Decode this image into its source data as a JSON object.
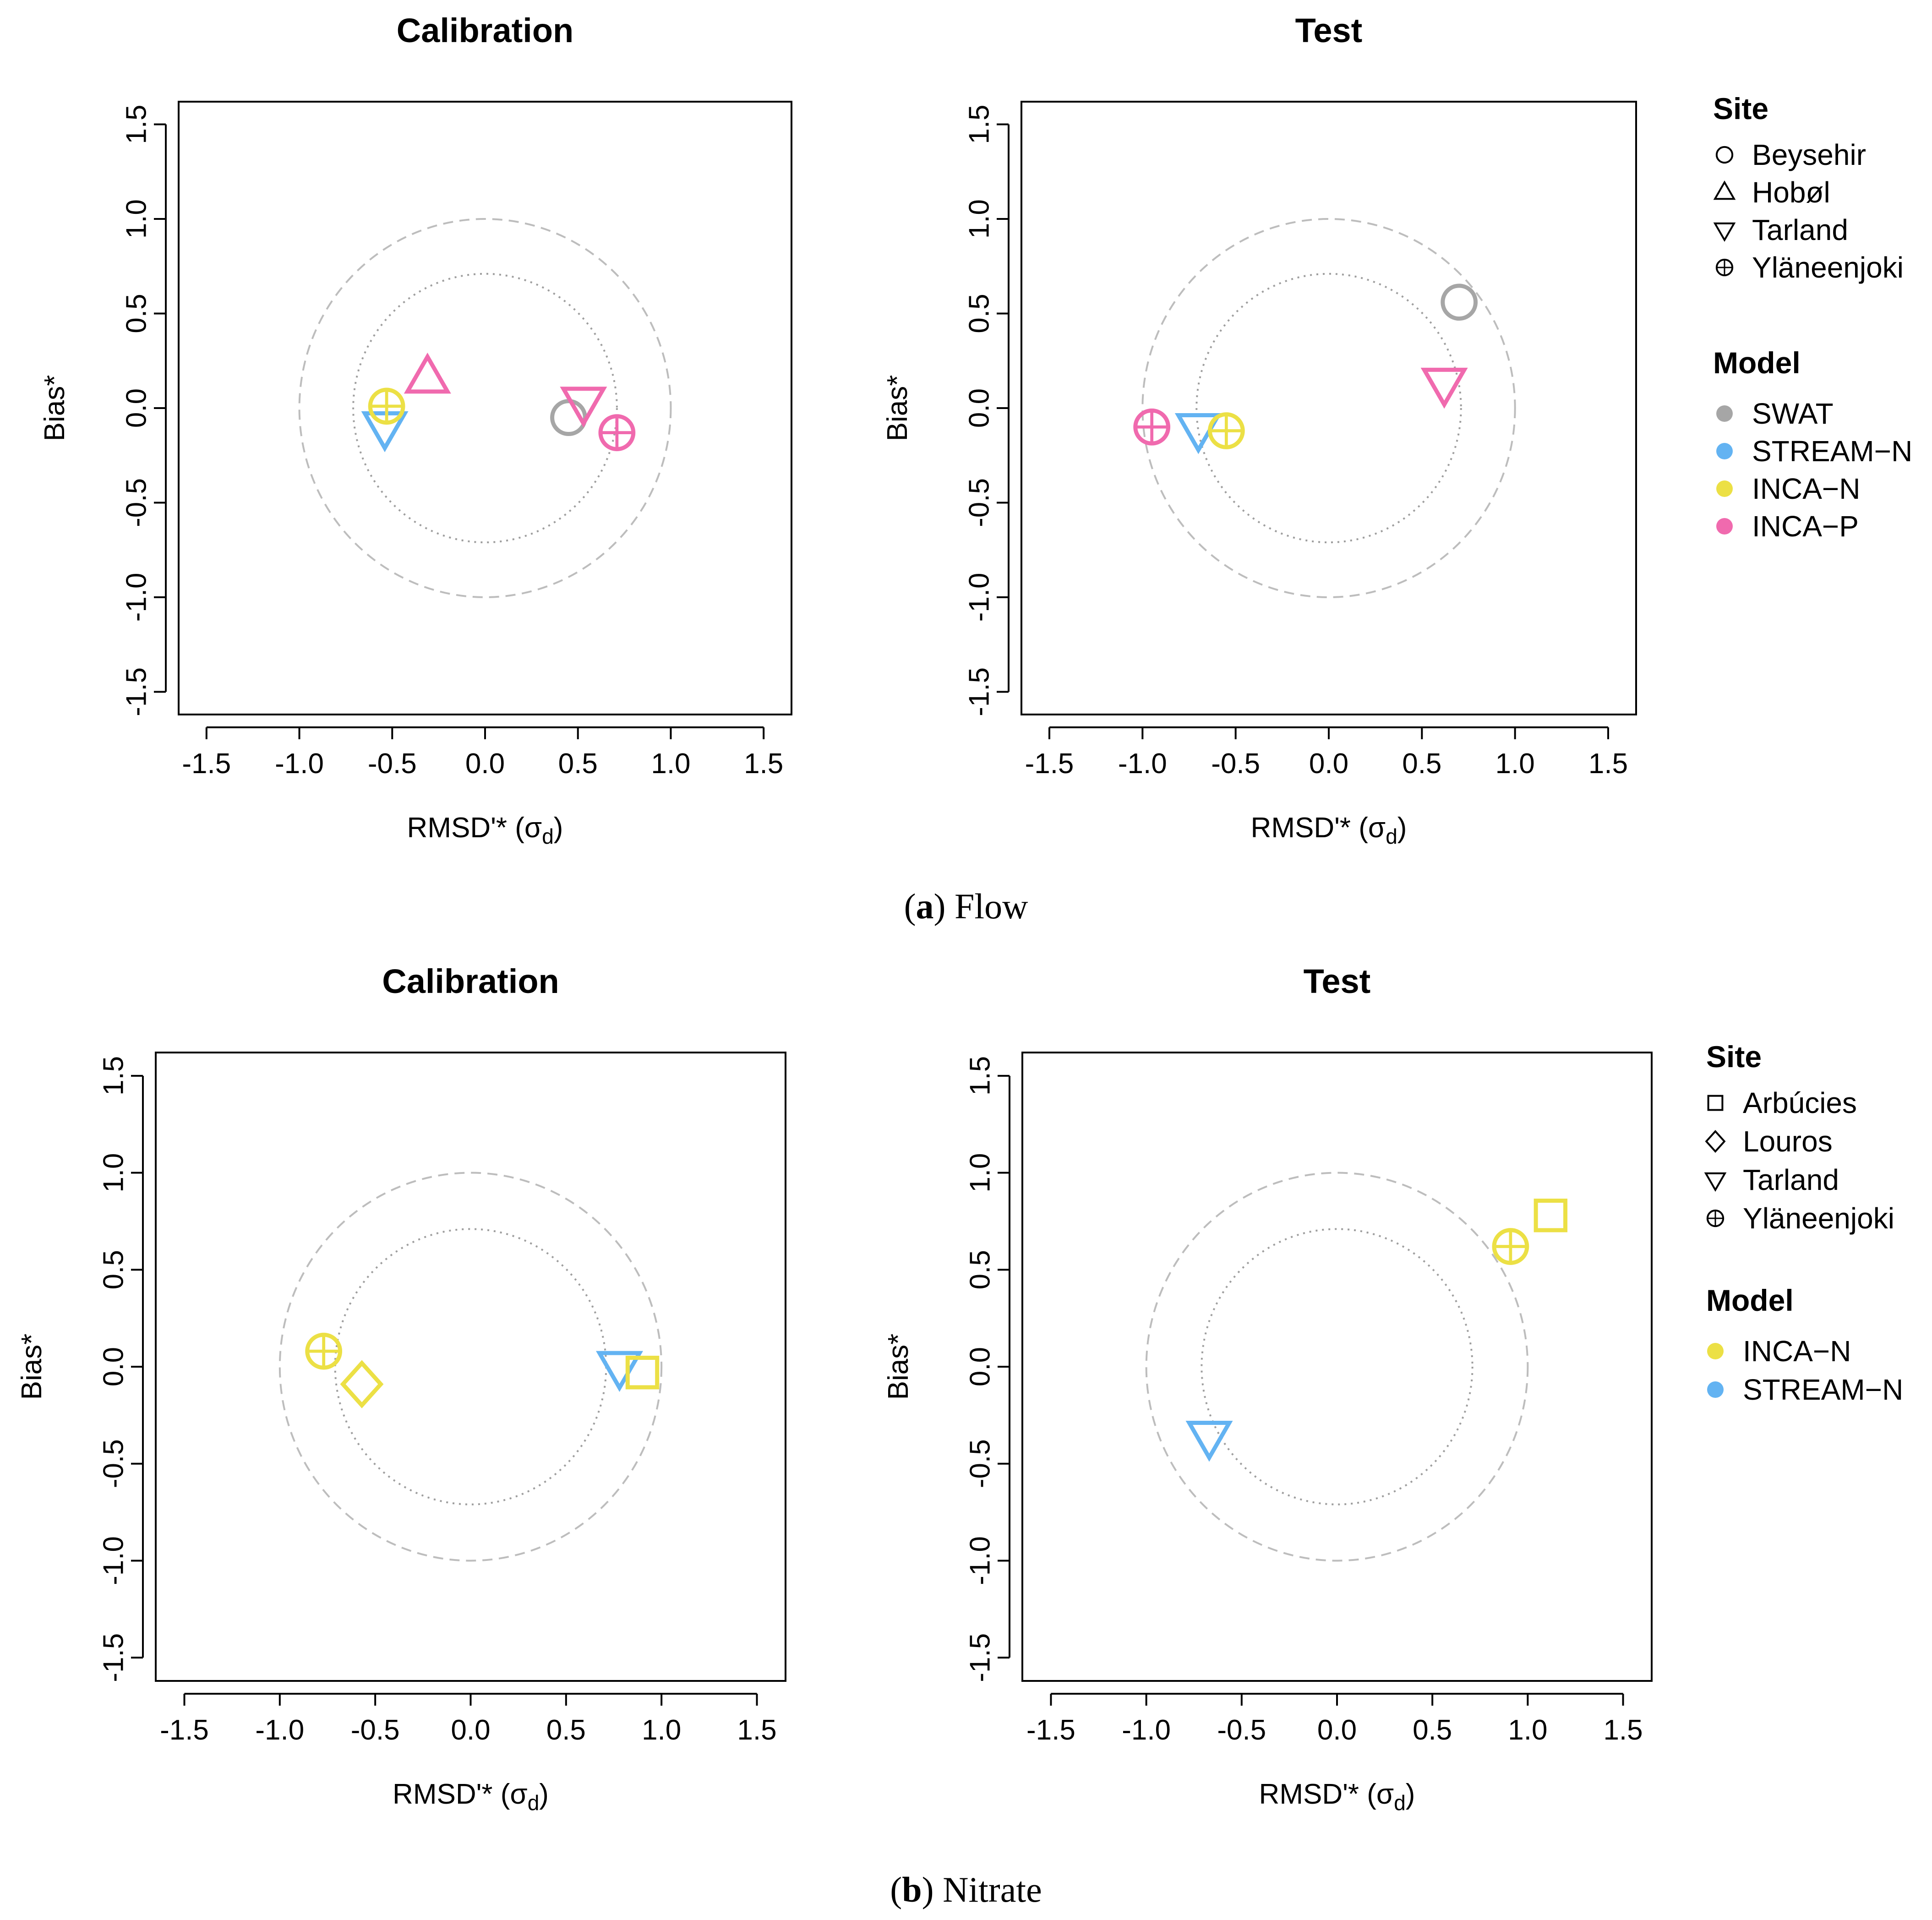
{
  "colors": {
    "SWAT": "#a6a6a6",
    "STREAM-N": "#63b3f2",
    "INCA-N": "#ece045",
    "INCA-P": "#f06aae",
    "ref_circle": "#bdbdbd",
    "dotted_circle": "#9e9e9e"
  },
  "chart_data": [
    {
      "id": "flow-calibration",
      "type": "scatter",
      "title": "Calibration",
      "xlabel": "RMSD'* (σd)",
      "ylabel": "Bias*",
      "xlim": [
        -1.65,
        1.65
      ],
      "ylim": [
        -1.62,
        1.62
      ],
      "xticks": [
        "-1.5",
        "-1.0",
        "-0.5",
        "0.0",
        "0.5",
        "1.0",
        "1.5"
      ],
      "yticks": [
        "-1.5",
        "-1.0",
        "-0.5",
        "0.0",
        "0.5",
        "1.0",
        "1.5"
      ],
      "reference_circles": [
        1.0,
        0.71
      ],
      "points": [
        {
          "site": "Beysehir",
          "model": "SWAT",
          "shape": "circle",
          "x": 0.45,
          "y": -0.05
        },
        {
          "site": "Hobøl",
          "model": "INCA-P",
          "shape": "triangle-up",
          "x": -0.31,
          "y": 0.16
        },
        {
          "site": "Tarland",
          "model": "STREAM-N",
          "shape": "triangle-down",
          "x": -0.54,
          "y": -0.1
        },
        {
          "site": "Tarland",
          "model": "INCA-P",
          "shape": "triangle-down",
          "x": 0.53,
          "y": 0.03
        },
        {
          "site": "Yläneenjoki",
          "model": "INCA-N",
          "shape": "circle-plus",
          "x": -0.53,
          "y": 0.01
        },
        {
          "site": "Yläneenjoki",
          "model": "INCA-P",
          "shape": "circle-plus",
          "x": 0.71,
          "y": -0.13
        }
      ]
    },
    {
      "id": "flow-test",
      "type": "scatter",
      "title": "Test",
      "xlabel": "RMSD'* (σd)",
      "ylabel": "Bias*",
      "xlim": [
        -1.65,
        1.65
      ],
      "ylim": [
        -1.62,
        1.62
      ],
      "xticks": [
        "-1.5",
        "-1.0",
        "-0.5",
        "0.0",
        "0.5",
        "1.0",
        "1.5"
      ],
      "yticks": [
        "-1.5",
        "-1.0",
        "-0.5",
        "0.0",
        "0.5",
        "1.0",
        "1.5"
      ],
      "reference_circles": [
        1.0,
        0.71
      ],
      "points": [
        {
          "site": "Beysehir",
          "model": "SWAT",
          "shape": "circle",
          "x": 0.7,
          "y": 0.56
        },
        {
          "site": "Tarland",
          "model": "INCA-P",
          "shape": "triangle-down",
          "x": 0.62,
          "y": 0.13
        },
        {
          "site": "Tarland",
          "model": "STREAM-N",
          "shape": "triangle-down",
          "x": -0.7,
          "y": -0.11
        },
        {
          "site": "Yläneenjoki",
          "model": "INCA-N",
          "shape": "circle-plus",
          "x": -0.55,
          "y": -0.12
        },
        {
          "site": "Yläneenjoki",
          "model": "INCA-P",
          "shape": "circle-plus",
          "x": -0.95,
          "y": -0.1
        }
      ]
    },
    {
      "id": "nitrate-calibration",
      "type": "scatter",
      "title": "Calibration",
      "xlabel": "RMSD'* (σd)",
      "ylabel": "Bias*",
      "xlim": [
        -1.65,
        1.65
      ],
      "ylim": [
        -1.62,
        1.62
      ],
      "xticks": [
        "-1.5",
        "-1.0",
        "-0.5",
        "0.0",
        "0.5",
        "1.0",
        "1.5"
      ],
      "yticks": [
        "-1.5",
        "-1.0",
        "-0.5",
        "0.0",
        "0.5",
        "1.0",
        "1.5"
      ],
      "reference_circles": [
        1.0,
        0.71
      ],
      "points": [
        {
          "site": "Yläneenjoki",
          "model": "INCA-N",
          "shape": "circle-plus",
          "x": -0.77,
          "y": 0.08
        },
        {
          "site": "Louros",
          "model": "INCA-N",
          "shape": "diamond",
          "x": -0.57,
          "y": -0.09
        },
        {
          "site": "Tarland",
          "model": "STREAM-N",
          "shape": "triangle-down",
          "x": 0.78,
          "y": 0.0
        },
        {
          "site": "Arbúcies",
          "model": "INCA-N",
          "shape": "square",
          "x": 0.9,
          "y": -0.03
        }
      ]
    },
    {
      "id": "nitrate-test",
      "type": "scatter",
      "title": "Test",
      "xlabel": "RMSD'* (σd)",
      "ylabel": "Bias*",
      "xlim": [
        -1.65,
        1.65
      ],
      "ylim": [
        -1.62,
        1.62
      ],
      "xticks": [
        "-1.5",
        "-1.0",
        "-0.5",
        "0.0",
        "0.5",
        "1.0",
        "1.5"
      ],
      "yticks": [
        "-1.5",
        "-1.0",
        "-0.5",
        "0.0",
        "0.5",
        "1.0",
        "1.5"
      ],
      "reference_circles": [
        1.0,
        0.71
      ],
      "points": [
        {
          "site": "Arbúcies",
          "model": "INCA-N",
          "shape": "square",
          "x": 1.12,
          "y": 0.78
        },
        {
          "site": "Yläneenjoki",
          "model": "INCA-N",
          "shape": "circle-plus",
          "x": 0.91,
          "y": 0.62
        },
        {
          "site": "Tarland",
          "model": "STREAM-N",
          "shape": "triangle-down",
          "x": -0.67,
          "y": -0.36
        }
      ]
    }
  ],
  "legends": [
    {
      "id": "flow-legend",
      "site_title": "Site",
      "sites": [
        {
          "label": "Beysehir",
          "shape": "circle"
        },
        {
          "label": "Hobøl",
          "shape": "triangle-up"
        },
        {
          "label": "Tarland",
          "shape": "triangle-down"
        },
        {
          "label": "Yläneenjoki",
          "shape": "circle-plus"
        }
      ],
      "model_title": "Model",
      "models": [
        {
          "label": "SWAT",
          "color": "#a6a6a6"
        },
        {
          "label": "STREAM−N",
          "color": "#63b3f2"
        },
        {
          "label": "INCA−N",
          "color": "#ece045"
        },
        {
          "label": "INCA−P",
          "color": "#f06aae"
        }
      ]
    },
    {
      "id": "nitrate-legend",
      "site_title": "Site",
      "sites": [
        {
          "label": "Arbúcies",
          "shape": "square"
        },
        {
          "label": "Louros",
          "shape": "diamond"
        },
        {
          "label": "Tarland",
          "shape": "triangle-down"
        },
        {
          "label": "Yläneenjoki",
          "shape": "circle-plus"
        }
      ],
      "model_title": "Model",
      "models": [
        {
          "label": "INCA−N",
          "color": "#ece045"
        },
        {
          "label": "STREAM−N",
          "color": "#63b3f2"
        }
      ]
    }
  ],
  "captions": {
    "a_letter": "a",
    "a_text": "Flow",
    "b_letter": "b",
    "b_text": "Nitrate"
  }
}
